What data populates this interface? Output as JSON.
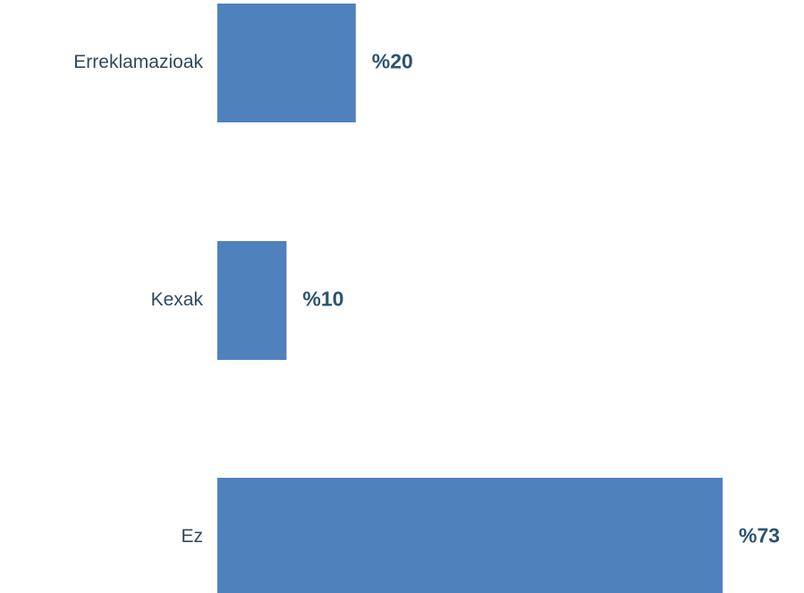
{
  "chart_data": {
    "type": "bar",
    "orientation": "horizontal",
    "categories": [
      "Erreklamazioak",
      "Kexak",
      "Ez"
    ],
    "values": [
      20,
      10,
      73
    ],
    "data_labels": [
      "%20",
      "%10",
      "%73"
    ],
    "title": "",
    "xlabel": "",
    "ylabel": "",
    "grid": false,
    "legend": "none",
    "bar_color": "#4f81bd",
    "category_label_color": "#2f4a5e",
    "data_label_color": "#2b5470"
  }
}
